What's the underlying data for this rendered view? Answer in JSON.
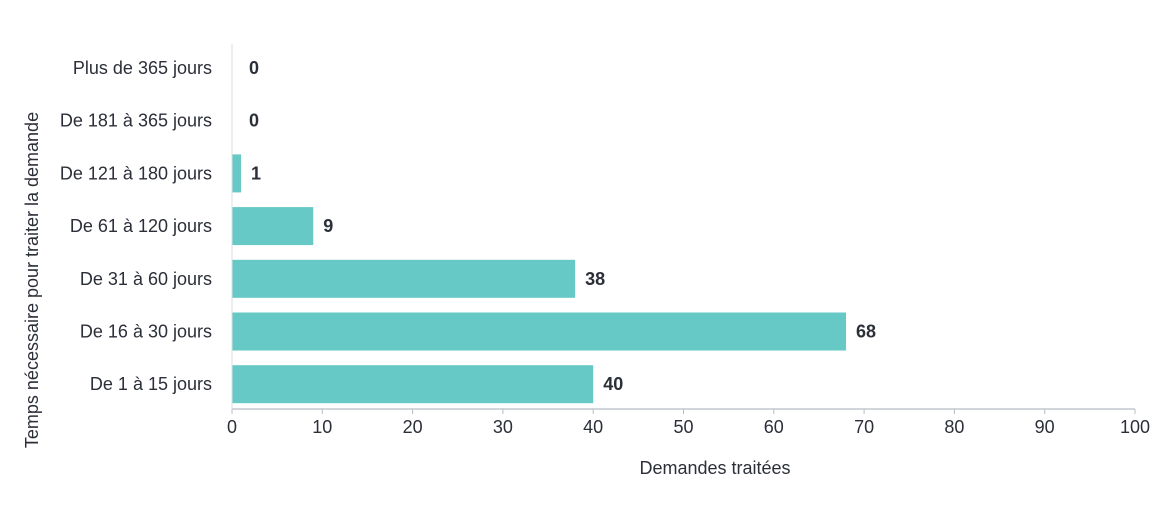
{
  "chart_data": {
    "type": "bar",
    "orientation": "horizontal",
    "categories": [
      "Plus de 365 jours",
      "De 181 à 365 jours",
      "De 121 à 180 jours",
      "De 61 à 120 jours",
      "De 31 à 60 jours",
      "De 16 à 30 jours",
      "De 1 à 15 jours"
    ],
    "values": [
      0,
      0,
      1,
      9,
      38,
      68,
      40
    ],
    "value_labels": [
      "0",
      "0",
      "1",
      "9",
      "38",
      "68",
      "40"
    ],
    "xlabel": "Demandes traitées",
    "ylabel": "Temps nécessaire pour traiter la demande",
    "xlim": [
      0,
      100
    ],
    "xticks": [
      "0",
      "10",
      "20",
      "30",
      "40",
      "50",
      "60",
      "70",
      "80",
      "90",
      "100"
    ],
    "grid": false,
    "legend": "none",
    "bar_color": "#66c9c6",
    "axis_color": "#b8bcc2"
  }
}
